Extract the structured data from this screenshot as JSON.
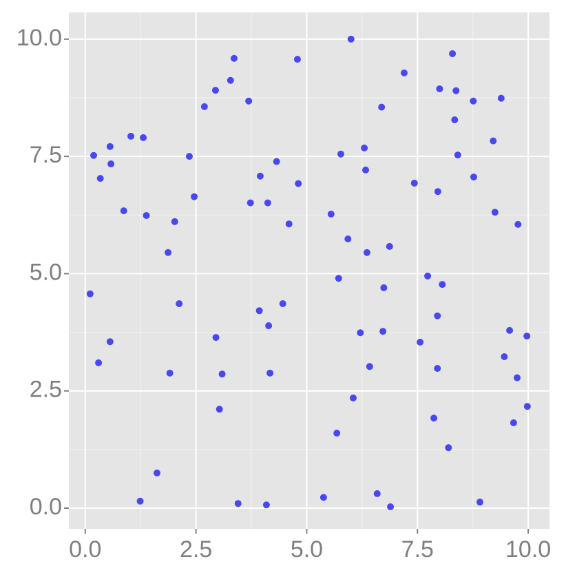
{
  "chart_data": {
    "type": "scatter",
    "color": "#4848f0",
    "grid": true,
    "xlim": [
      -0.37,
      10.48
    ],
    "ylim": [
      -0.44,
      10.57
    ],
    "xticks": [
      {
        "value": 0,
        "label": "0.0"
      },
      2.5,
      {
        "value": 5,
        "label": "5.0"
      },
      7.5,
      {
        "value": 10,
        "label": "10.0"
      }
    ],
    "yticks": [
      {
        "value": 0,
        "label": "0.0"
      },
      2.5,
      {
        "value": 5,
        "label": "5.0"
      },
      7.5,
      {
        "value": 10,
        "label": "10.0"
      }
    ],
    "x": [
      0.11,
      0.19,
      0.3,
      0.34,
      0.56,
      0.58,
      0.56,
      0.87,
      1.03,
      1.31,
      1.24,
      1.38,
      1.62,
      1.87,
      1.91,
      2.02,
      2.12,
      2.35,
      2.46,
      2.69,
      2.94,
      2.95,
      3.03,
      3.09,
      3.28,
      3.36,
      3.45,
      3.69,
      3.73,
      3.93,
      3.95,
      4.12,
      4.14,
      4.17,
      4.09,
      4.32,
      4.46,
      4.6,
      4.79,
      4.81,
      5.38,
      5.55,
      5.68,
      5.72,
      5.77,
      5.93,
      6.0,
      6.05,
      6.21,
      6.3,
      6.33,
      6.36,
      6.42,
      6.59,
      6.69,
      6.72,
      6.74,
      6.87,
      6.89,
      7.2,
      7.43,
      7.56,
      7.73,
      7.87,
      7.95,
      7.95,
      7.96,
      8.0,
      8.06,
      8.2,
      8.29,
      8.34,
      8.37,
      8.41,
      8.76,
      8.77,
      8.91,
      9.21,
      9.25,
      9.39,
      9.46,
      9.58,
      9.67,
      9.75,
      9.77,
      9.97,
      9.98
    ],
    "values": [
      4.57,
      7.52,
      3.1,
      7.03,
      7.71,
      7.34,
      3.55,
      6.34,
      7.93,
      7.9,
      0.15,
      6.24,
      0.75,
      5.45,
      2.88,
      6.11,
      4.36,
      7.5,
      6.64,
      8.56,
      8.91,
      3.64,
      2.11,
      2.86,
      9.12,
      9.59,
      0.1,
      8.68,
      6.51,
      4.21,
      7.08,
      6.51,
      3.89,
      2.88,
      0.07,
      7.39,
      4.36,
      6.06,
      9.57,
      6.92,
      0.23,
      6.27,
      1.6,
      4.9,
      7.55,
      5.74,
      10.0,
      2.35,
      3.74,
      7.68,
      7.21,
      5.45,
      3.02,
      0.31,
      8.55,
      3.77,
      4.7,
      5.58,
      0.03,
      9.28,
      6.93,
      3.54,
      4.95,
      1.92,
      2.98,
      4.1,
      6.75,
      8.94,
      4.77,
      1.29,
      9.69,
      8.28,
      8.9,
      7.53,
      8.68,
      7.06,
      0.13,
      7.83,
      6.31,
      8.74,
      3.23,
      3.79,
      1.82,
      2.78,
      6.05,
      3.67,
      2.17
    ]
  }
}
